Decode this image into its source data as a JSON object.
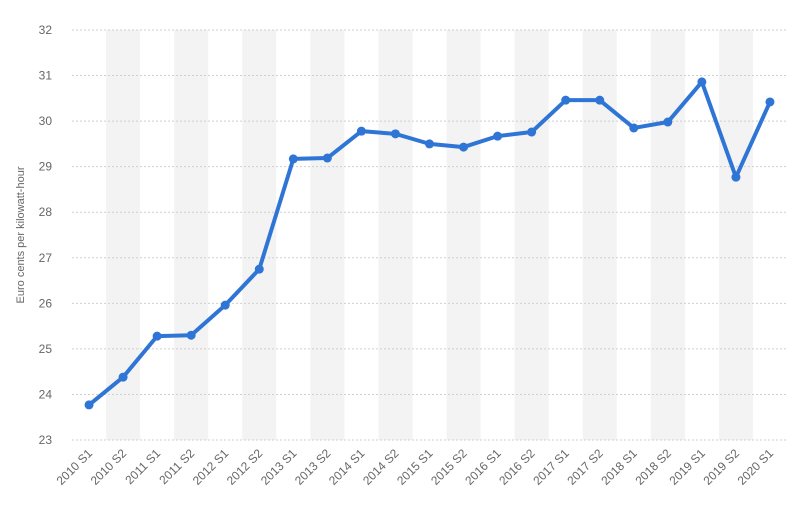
{
  "chart_data": {
    "type": "line",
    "y_label": "Euro cents per kilowatt-hour",
    "categories": [
      "2010 S1",
      "2010 S2",
      "2011 S1",
      "2011 S2",
      "2012 S1",
      "2012 S2",
      "2013 S1",
      "2013 S2",
      "2014 S1",
      "2014 S2",
      "2015 S1",
      "2015 S2",
      "2016 S1",
      "2016 S2",
      "2017 S1",
      "2017 S2",
      "2018 S1",
      "2018 S2",
      "2019 S1",
      "2019 S2",
      "2020 S1"
    ],
    "series": [
      {
        "color": "#2f75d6",
        "values": [
          23.77,
          24.38,
          25.28,
          25.3,
          25.96,
          26.75,
          29.17,
          29.19,
          29.78,
          29.72,
          29.5,
          29.43,
          29.67,
          29.76,
          30.46,
          30.46,
          29.85,
          29.98,
          30.86,
          28.77,
          30.42
        ]
      }
    ],
    "ylim": [
      23,
      32
    ],
    "yticks": [
      23,
      24,
      25,
      26,
      27,
      28,
      29,
      30,
      31,
      32
    ],
    "grid": true
  }
}
